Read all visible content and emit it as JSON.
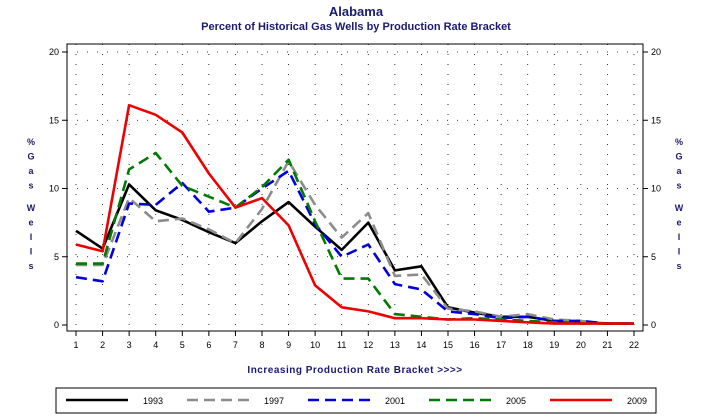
{
  "chart_data": {
    "type": "line",
    "title": "Alabama",
    "subtitle": "Percent of Historical Gas Wells by Production Rate Bracket",
    "xlabel": "Increasing Production Rate Bracket >>>>",
    "ylabel_left": [
      "%",
      "G",
      "a",
      "s",
      "W",
      "e",
      "l",
      "l",
      "s"
    ],
    "ylabel_right": [
      "%",
      "G",
      "a",
      "s",
      "W",
      "e",
      "l",
      "l",
      "s"
    ],
    "x": [
      1,
      2,
      3,
      4,
      5,
      6,
      7,
      8,
      9,
      10,
      11,
      12,
      13,
      14,
      15,
      16,
      17,
      18,
      19,
      20,
      21,
      22
    ],
    "x_tick_labels": [
      "1",
      "2",
      "3",
      "4",
      "5",
      "6",
      "7",
      "8",
      "9",
      "10",
      "11",
      "12",
      "13",
      "14",
      "15",
      "16",
      "17",
      "18",
      "19",
      "20",
      "21",
      "22"
    ],
    "ylim": [
      0,
      20
    ],
    "y_ticks": [
      0,
      5,
      10,
      15,
      20
    ],
    "y_tick_labels": [
      "0",
      "5",
      "10",
      "15",
      "20"
    ],
    "grid": "dotted",
    "legend_position": "bottom",
    "series": [
      {
        "name": "1993",
        "color": "#000000",
        "dash": "solid",
        "values": [
          6.9,
          5.6,
          10.3,
          8.4,
          7.7,
          6.8,
          6.0,
          7.6,
          9.0,
          7.2,
          5.5,
          7.5,
          4.0,
          4.3,
          1.3,
          0.9,
          0.6,
          0.6,
          0.3,
          0.2,
          0.1,
          0.1
        ]
      },
      {
        "name": "1997",
        "color": "#8c8c8c",
        "dash": "dashed",
        "values": [
          4.4,
          4.4,
          9.3,
          7.6,
          7.8,
          7.0,
          6.0,
          8.5,
          12.0,
          8.8,
          6.4,
          8.2,
          3.6,
          3.7,
          1.2,
          1.0,
          0.6,
          0.8,
          0.4,
          0.3,
          0.1,
          0.1
        ]
      },
      {
        "name": "2001",
        "color": "#0000dd",
        "dash": "dashed",
        "values": [
          3.5,
          3.2,
          8.9,
          8.8,
          10.4,
          8.3,
          8.6,
          10.0,
          11.3,
          7.4,
          5.0,
          5.9,
          3.0,
          2.6,
          1.0,
          0.8,
          0.5,
          0.6,
          0.3,
          0.3,
          0.1,
          0.1
        ]
      },
      {
        "name": "2005",
        "color": "#007a00",
        "dash": "dashed",
        "values": [
          4.5,
          4.5,
          11.4,
          12.6,
          10.2,
          9.4,
          8.6,
          10.1,
          12.1,
          7.6,
          3.4,
          3.4,
          0.8,
          0.6,
          0.4,
          0.5,
          0.4,
          0.3,
          0.2,
          0.1,
          0.1,
          0.1
        ]
      },
      {
        "name": "2009",
        "color": "#ee0000",
        "dash": "solid",
        "values": [
          5.9,
          5.4,
          16.1,
          15.4,
          14.1,
          11.1,
          8.6,
          9.3,
          7.3,
          2.9,
          1.3,
          1.0,
          0.5,
          0.5,
          0.4,
          0.4,
          0.3,
          0.2,
          0.1,
          0.1,
          0.1,
          0.1
        ]
      }
    ]
  }
}
